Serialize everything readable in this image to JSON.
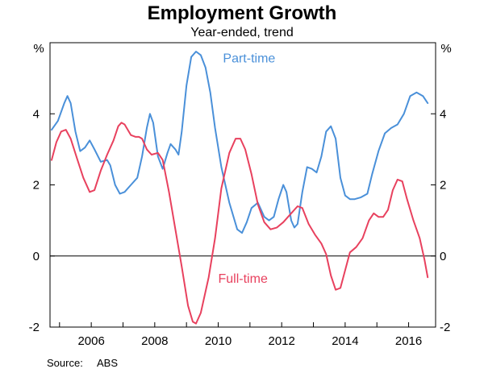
{
  "chart_data": {
    "type": "line",
    "title": "Employment Growth",
    "subtitle": "Year-ended, trend",
    "y_unit_left": "%",
    "y_unit_right": "%",
    "source_label": "Source:",
    "source_value": "ABS",
    "xlim": [
      2004.7,
      2016.85
    ],
    "ylim": [
      -2,
      6
    ],
    "yticks": [
      -2,
      0,
      2,
      4
    ],
    "ytick_labels": [
      "-2",
      "0",
      "2",
      "4"
    ],
    "xticks": [
      2006,
      2008,
      2010,
      2012,
      2014,
      2016
    ],
    "xtick_labels": [
      "2006",
      "2008",
      "2010",
      "2012",
      "2014",
      "2016"
    ],
    "zero_line": true,
    "series": [
      {
        "name": "Part-time",
        "label": "Part-time",
        "color": "#4a90d9",
        "points": [
          [
            2004.75,
            3.55
          ],
          [
            2004.95,
            3.8
          ],
          [
            2005.15,
            4.3
          ],
          [
            2005.25,
            4.5
          ],
          [
            2005.35,
            4.3
          ],
          [
            2005.5,
            3.5
          ],
          [
            2005.65,
            2.95
          ],
          [
            2005.8,
            3.05
          ],
          [
            2005.95,
            3.25
          ],
          [
            2006.1,
            3.0
          ],
          [
            2006.3,
            2.65
          ],
          [
            2006.5,
            2.7
          ],
          [
            2006.6,
            2.55
          ],
          [
            2006.75,
            2.0
          ],
          [
            2006.9,
            1.75
          ],
          [
            2007.05,
            1.8
          ],
          [
            2007.25,
            2.0
          ],
          [
            2007.45,
            2.2
          ],
          [
            2007.6,
            2.8
          ],
          [
            2007.75,
            3.6
          ],
          [
            2007.85,
            4.0
          ],
          [
            2007.95,
            3.75
          ],
          [
            2008.1,
            2.8
          ],
          [
            2008.25,
            2.45
          ],
          [
            2008.4,
            2.9
          ],
          [
            2008.5,
            3.15
          ],
          [
            2008.65,
            3.0
          ],
          [
            2008.75,
            2.85
          ],
          [
            2008.85,
            3.5
          ],
          [
            2009.0,
            4.8
          ],
          [
            2009.15,
            5.6
          ],
          [
            2009.3,
            5.75
          ],
          [
            2009.45,
            5.65
          ],
          [
            2009.6,
            5.3
          ],
          [
            2009.75,
            4.6
          ],
          [
            2009.9,
            3.6
          ],
          [
            2010.1,
            2.5
          ],
          [
            2010.35,
            1.5
          ],
          [
            2010.6,
            0.75
          ],
          [
            2010.75,
            0.65
          ],
          [
            2010.9,
            0.95
          ],
          [
            2011.05,
            1.35
          ],
          [
            2011.25,
            1.5
          ],
          [
            2011.45,
            1.1
          ],
          [
            2011.6,
            1.0
          ],
          [
            2011.75,
            1.1
          ],
          [
            2011.9,
            1.6
          ],
          [
            2012.05,
            2.0
          ],
          [
            2012.15,
            1.8
          ],
          [
            2012.3,
            1.0
          ],
          [
            2012.4,
            0.8
          ],
          [
            2012.5,
            0.9
          ],
          [
            2012.65,
            1.8
          ],
          [
            2012.8,
            2.5
          ],
          [
            2012.95,
            2.45
          ],
          [
            2013.1,
            2.35
          ],
          [
            2013.25,
            2.8
          ],
          [
            2013.4,
            3.5
          ],
          [
            2013.55,
            3.65
          ],
          [
            2013.7,
            3.3
          ],
          [
            2013.85,
            2.2
          ],
          [
            2014.0,
            1.7
          ],
          [
            2014.15,
            1.6
          ],
          [
            2014.3,
            1.6
          ],
          [
            2014.5,
            1.65
          ],
          [
            2014.7,
            1.75
          ],
          [
            2014.85,
            2.3
          ],
          [
            2015.05,
            2.95
          ],
          [
            2015.25,
            3.45
          ],
          [
            2015.45,
            3.6
          ],
          [
            2015.65,
            3.7
          ],
          [
            2015.85,
            4.0
          ],
          [
            2016.05,
            4.5
          ],
          [
            2016.25,
            4.6
          ],
          [
            2016.45,
            4.5
          ],
          [
            2016.6,
            4.3
          ]
        ]
      },
      {
        "name": "Full-time",
        "label": "Full-time",
        "color": "#e8415e",
        "points": [
          [
            2004.75,
            2.7
          ],
          [
            2004.9,
            3.2
          ],
          [
            2005.05,
            3.5
          ],
          [
            2005.2,
            3.55
          ],
          [
            2005.35,
            3.3
          ],
          [
            2005.55,
            2.75
          ],
          [
            2005.75,
            2.2
          ],
          [
            2005.95,
            1.8
          ],
          [
            2006.1,
            1.85
          ],
          [
            2006.3,
            2.4
          ],
          [
            2006.5,
            2.85
          ],
          [
            2006.7,
            3.25
          ],
          [
            2006.85,
            3.65
          ],
          [
            2006.95,
            3.75
          ],
          [
            2007.05,
            3.7
          ],
          [
            2007.25,
            3.4
          ],
          [
            2007.4,
            3.35
          ],
          [
            2007.5,
            3.35
          ],
          [
            2007.6,
            3.3
          ],
          [
            2007.75,
            3.0
          ],
          [
            2007.9,
            2.85
          ],
          [
            2008.1,
            2.9
          ],
          [
            2008.25,
            2.7
          ],
          [
            2008.45,
            1.8
          ],
          [
            2008.65,
            0.75
          ],
          [
            2008.85,
            -0.3
          ],
          [
            2009.05,
            -1.4
          ],
          [
            2009.2,
            -1.85
          ],
          [
            2009.3,
            -1.9
          ],
          [
            2009.45,
            -1.6
          ],
          [
            2009.7,
            -0.6
          ],
          [
            2009.9,
            0.5
          ],
          [
            2010.1,
            1.9
          ],
          [
            2010.35,
            2.9
          ],
          [
            2010.55,
            3.3
          ],
          [
            2010.7,
            3.3
          ],
          [
            2010.85,
            3.0
          ],
          [
            2011.05,
            2.3
          ],
          [
            2011.25,
            1.45
          ],
          [
            2011.45,
            0.95
          ],
          [
            2011.65,
            0.75
          ],
          [
            2011.85,
            0.8
          ],
          [
            2012.05,
            0.95
          ],
          [
            2012.3,
            1.2
          ],
          [
            2012.5,
            1.4
          ],
          [
            2012.65,
            1.35
          ],
          [
            2012.85,
            0.9
          ],
          [
            2013.05,
            0.6
          ],
          [
            2013.25,
            0.35
          ],
          [
            2013.4,
            0.05
          ],
          [
            2013.55,
            -0.55
          ],
          [
            2013.7,
            -0.95
          ],
          [
            2013.85,
            -0.9
          ],
          [
            2014.0,
            -0.4
          ],
          [
            2014.15,
            0.1
          ],
          [
            2014.35,
            0.25
          ],
          [
            2014.55,
            0.5
          ],
          [
            2014.75,
            1.0
          ],
          [
            2014.9,
            1.2
          ],
          [
            2015.05,
            1.1
          ],
          [
            2015.2,
            1.1
          ],
          [
            2015.35,
            1.3
          ],
          [
            2015.5,
            1.85
          ],
          [
            2015.65,
            2.15
          ],
          [
            2015.8,
            2.1
          ],
          [
            2015.95,
            1.6
          ],
          [
            2016.15,
            1.0
          ],
          [
            2016.35,
            0.5
          ],
          [
            2016.5,
            -0.1
          ],
          [
            2016.6,
            -0.6
          ]
        ]
      }
    ]
  }
}
